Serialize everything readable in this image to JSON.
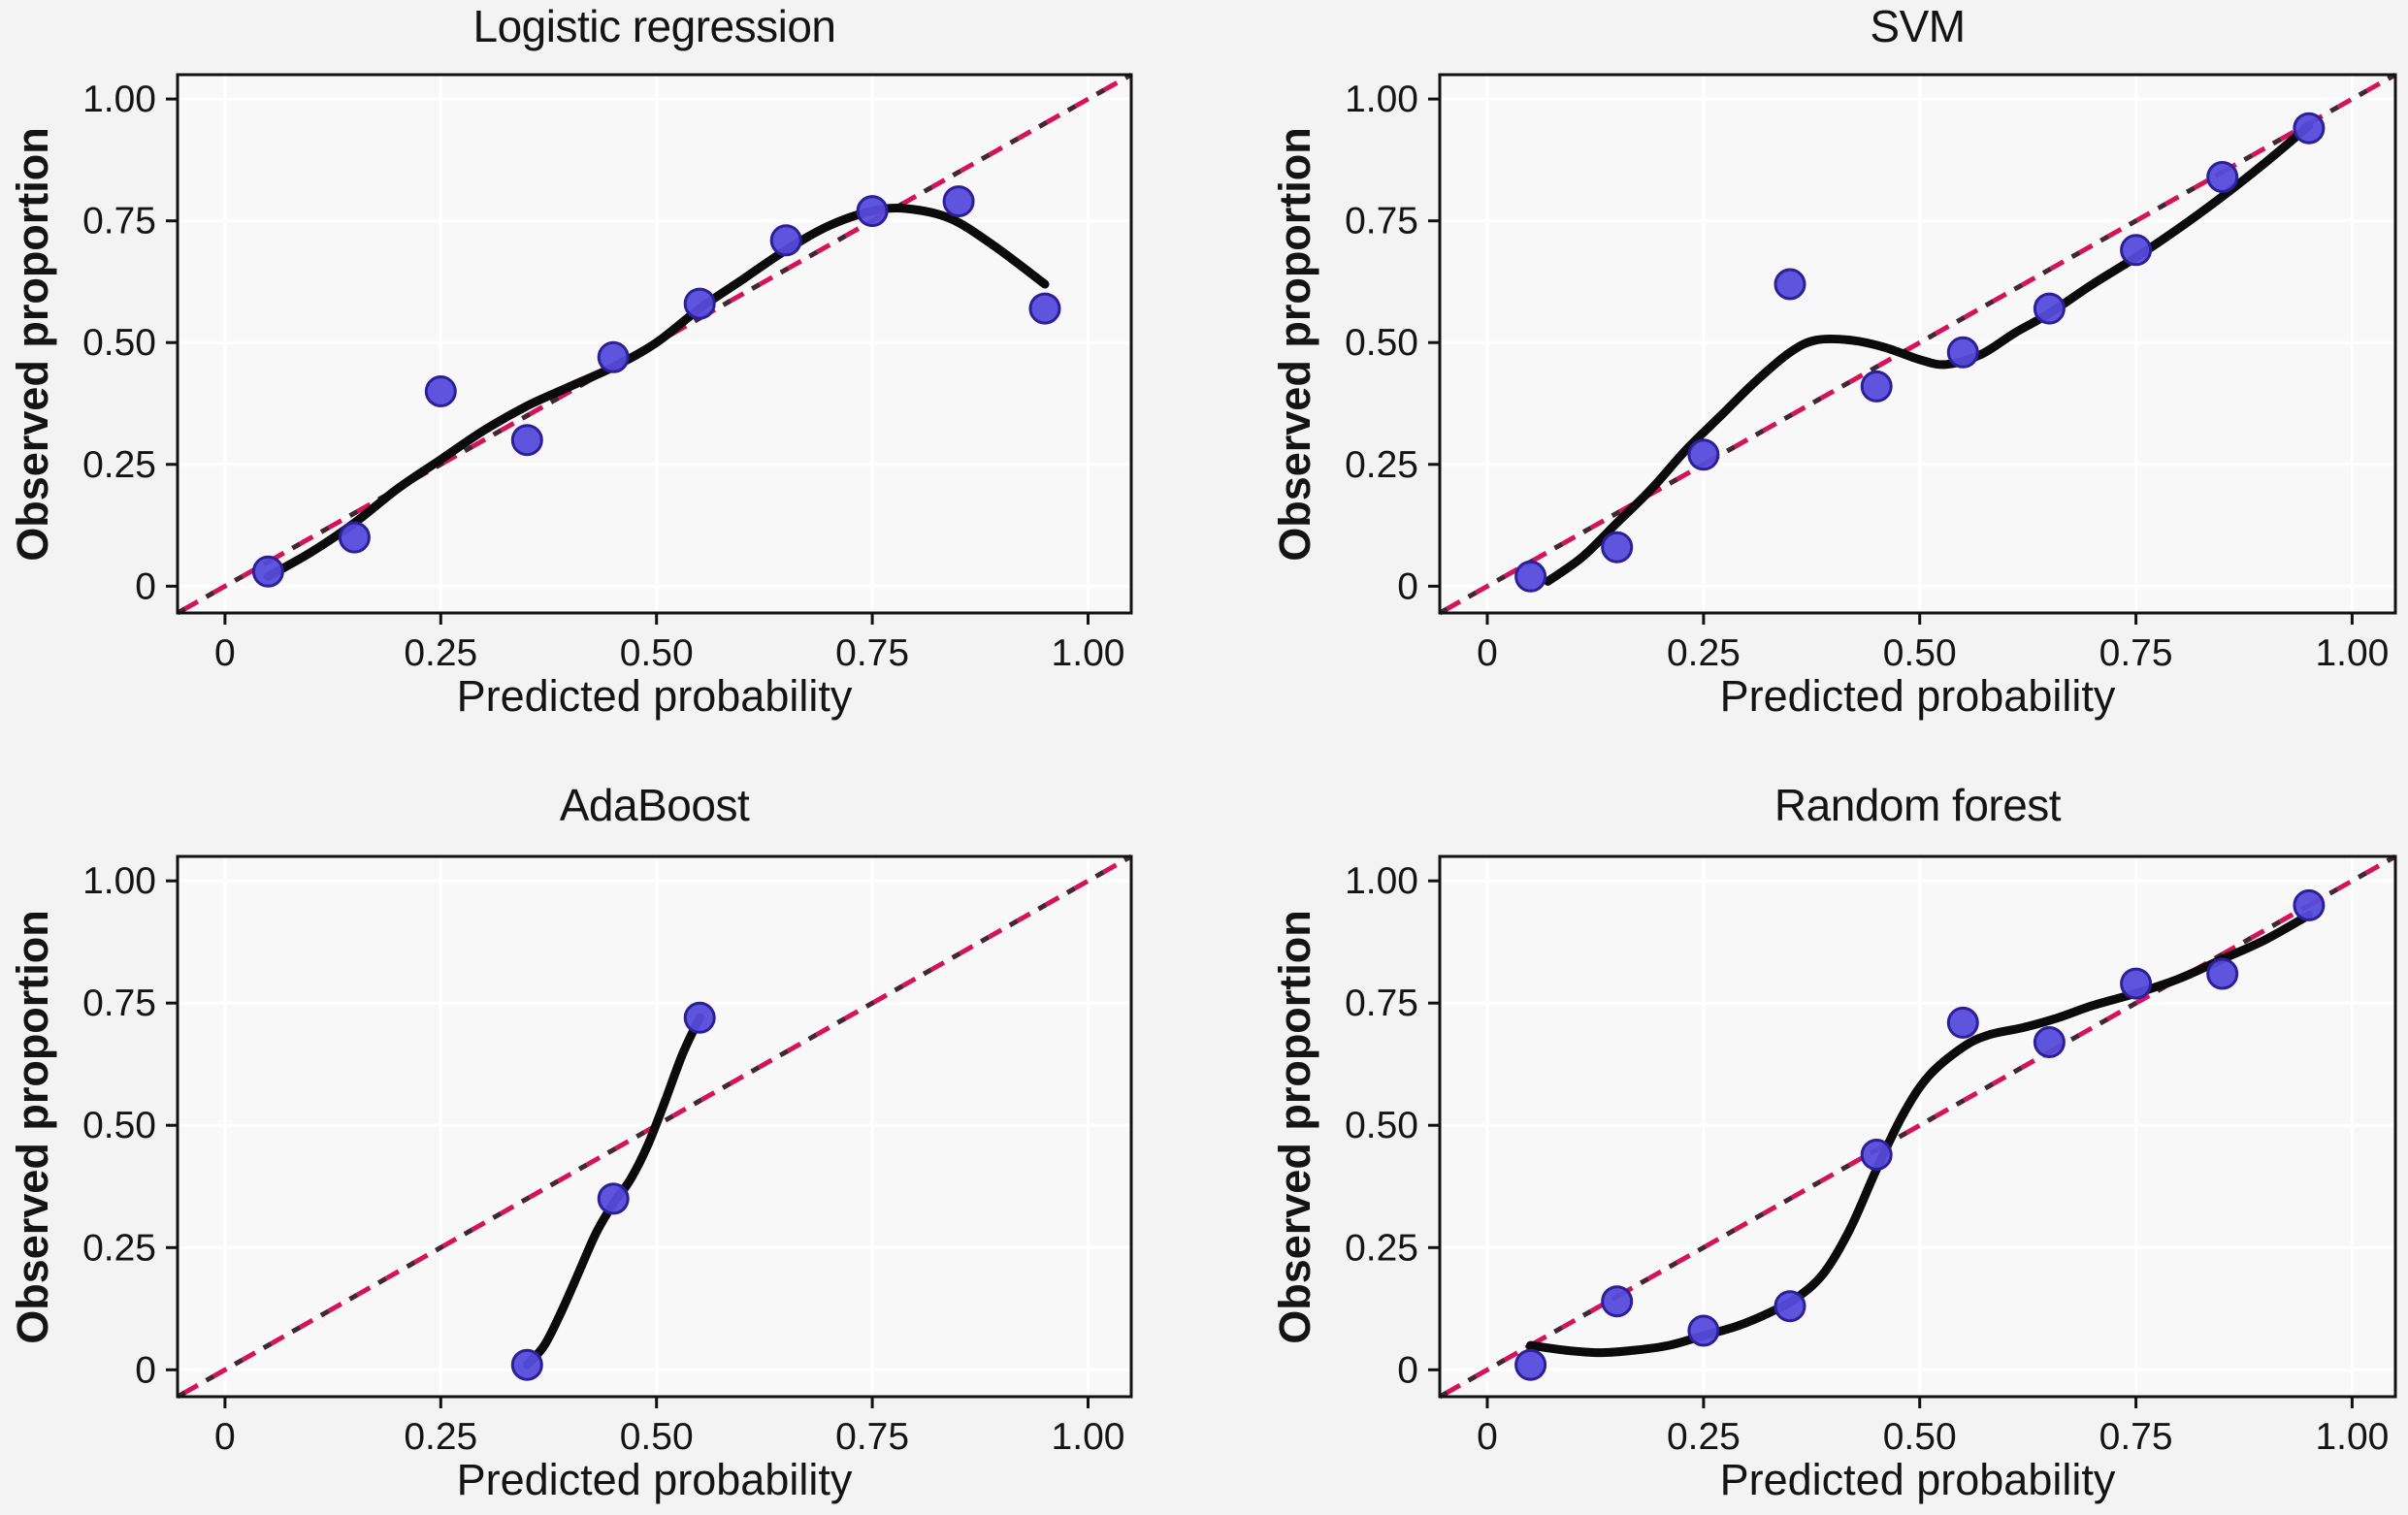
{
  "figure": {
    "background": "#f3f3f3",
    "panel_background": "#f9f8f9",
    "grid_color": "#ffffff",
    "border_color": "#111111",
    "tick_color": "#111111",
    "text_color": "#141414",
    "point_fill": "#564bdb",
    "point_stroke": "#2c1f97",
    "loess_color": "#0b0b0b",
    "diagonal_color": "#d6135a",
    "diagonal_underlay_color": "#30101c",
    "axes": {
      "xlabel": "Predicted probability",
      "ylabel": "Observed proportion",
      "tick_values": [
        0,
        0.25,
        0.5,
        0.75,
        1
      ],
      "tick_labels": [
        "0",
        "0.25",
        "0.50",
        "0.75",
        "1.00"
      ],
      "range": [
        -0.055,
        1.05
      ],
      "grid": "major-only"
    }
  },
  "chart_data": [
    {
      "type": "scatter",
      "title": "Logistic regression",
      "xlabel": "Predicted probability",
      "ylabel": "Observed proportion",
      "xlim": [
        -0.05,
        1.05
      ],
      "ylim": [
        -0.05,
        1.05
      ],
      "x_tick_labels": [
        "0",
        "0.25",
        "0.50",
        "0.75",
        "1.00"
      ],
      "y_tick_labels": [
        "0",
        "0.25",
        "0.50",
        "0.75",
        "1.00"
      ],
      "reference_line": {
        "style": "dashed",
        "x": [
          -0.055,
          1.05
        ],
        "y": [
          -0.055,
          1.05
        ]
      },
      "points": {
        "x": [
          0.05,
          0.15,
          0.25,
          0.35,
          0.45,
          0.55,
          0.65,
          0.75,
          0.85,
          0.95
        ],
        "y": [
          0.03,
          0.1,
          0.4,
          0.3,
          0.47,
          0.58,
          0.71,
          0.77,
          0.79,
          0.57
        ]
      },
      "smooth": {
        "x": [
          0.05,
          0.1,
          0.15,
          0.2,
          0.25,
          0.3,
          0.35,
          0.4,
          0.45,
          0.5,
          0.55,
          0.6,
          0.65,
          0.7,
          0.75,
          0.79,
          0.84,
          0.89,
          0.95
        ],
        "y": [
          0.02,
          0.07,
          0.13,
          0.2,
          0.26,
          0.32,
          0.37,
          0.41,
          0.45,
          0.5,
          0.57,
          0.63,
          0.69,
          0.74,
          0.77,
          0.775,
          0.755,
          0.7,
          0.62
        ]
      }
    },
    {
      "type": "scatter",
      "title": "SVM",
      "xlabel": "Predicted probability",
      "ylabel": "Observed proportion",
      "xlim": [
        -0.05,
        1.05
      ],
      "ylim": [
        -0.05,
        1.05
      ],
      "x_tick_labels": [
        "0",
        "0.25",
        "0.50",
        "0.75",
        "1.00"
      ],
      "y_tick_labels": [
        "0",
        "0.25",
        "0.50",
        "0.75",
        "1.00"
      ],
      "reference_line": {
        "style": "dashed",
        "x": [
          -0.055,
          1.05
        ],
        "y": [
          -0.055,
          1.05
        ]
      },
      "points": {
        "x": [
          0.05,
          0.15,
          0.25,
          0.35,
          0.45,
          0.55,
          0.65,
          0.75,
          0.85,
          0.95
        ],
        "y": [
          0.02,
          0.08,
          0.27,
          0.62,
          0.41,
          0.48,
          0.57,
          0.69,
          0.84,
          0.94
        ]
      },
      "smooth": {
        "x": [
          0.07,
          0.11,
          0.15,
          0.19,
          0.23,
          0.27,
          0.31,
          0.35,
          0.38,
          0.42,
          0.46,
          0.5,
          0.53,
          0.57,
          0.61,
          0.65,
          0.7,
          0.75,
          0.8,
          0.85,
          0.9,
          0.95
        ],
        "y": [
          0.01,
          0.06,
          0.13,
          0.2,
          0.28,
          0.35,
          0.42,
          0.48,
          0.505,
          0.505,
          0.49,
          0.465,
          0.455,
          0.475,
          0.52,
          0.56,
          0.62,
          0.675,
          0.735,
          0.8,
          0.87,
          0.945
        ]
      }
    },
    {
      "type": "scatter",
      "title": "AdaBoost",
      "xlabel": "Predicted probability",
      "ylabel": "Observed proportion",
      "xlim": [
        -0.05,
        1.05
      ],
      "ylim": [
        -0.05,
        1.05
      ],
      "x_tick_labels": [
        "0",
        "0.25",
        "0.50",
        "0.75",
        "1.00"
      ],
      "y_tick_labels": [
        "0",
        "0.25",
        "0.50",
        "0.75",
        "1.00"
      ],
      "reference_line": {
        "style": "dashed",
        "x": [
          -0.055,
          1.05
        ],
        "y": [
          -0.055,
          1.05
        ]
      },
      "points": {
        "x": [
          0.35,
          0.45,
          0.55
        ],
        "y": [
          0.01,
          0.35,
          0.72
        ]
      },
      "smooth": {
        "x": [
          0.35,
          0.37,
          0.39,
          0.41,
          0.43,
          0.45,
          0.47,
          0.49,
          0.51,
          0.53,
          0.55
        ],
        "y": [
          0.01,
          0.05,
          0.12,
          0.2,
          0.28,
          0.34,
          0.39,
          0.46,
          0.55,
          0.645,
          0.72
        ]
      }
    },
    {
      "type": "scatter",
      "title": "Random forest",
      "xlabel": "Predicted probability",
      "ylabel": "Observed proportion",
      "xlim": [
        -0.05,
        1.05
      ],
      "ylim": [
        -0.05,
        1.05
      ],
      "x_tick_labels": [
        "0",
        "0.25",
        "0.50",
        "0.75",
        "1.00"
      ],
      "y_tick_labels": [
        "0",
        "0.25",
        "0.50",
        "0.75",
        "1.00"
      ],
      "reference_line": {
        "style": "dashed",
        "x": [
          -0.055,
          1.05
        ],
        "y": [
          -0.055,
          1.05
        ]
      },
      "points": {
        "x": [
          0.05,
          0.15,
          0.25,
          0.35,
          0.45,
          0.55,
          0.65,
          0.75,
          0.85,
          0.95
        ],
        "y": [
          0.01,
          0.14,
          0.08,
          0.13,
          0.44,
          0.71,
          0.67,
          0.79,
          0.81,
          0.95
        ]
      },
      "smooth": {
        "x": [
          0.05,
          0.09,
          0.13,
          0.17,
          0.21,
          0.25,
          0.29,
          0.33,
          0.36,
          0.39,
          0.42,
          0.45,
          0.48,
          0.51,
          0.55,
          0.58,
          0.62,
          0.66,
          0.7,
          0.75,
          0.8,
          0.85,
          0.9,
          0.95
        ],
        "y": [
          0.05,
          0.04,
          0.035,
          0.04,
          0.05,
          0.07,
          0.09,
          0.12,
          0.15,
          0.2,
          0.29,
          0.41,
          0.52,
          0.6,
          0.66,
          0.685,
          0.7,
          0.72,
          0.745,
          0.77,
          0.8,
          0.84,
          0.88,
          0.93
        ]
      }
    }
  ]
}
